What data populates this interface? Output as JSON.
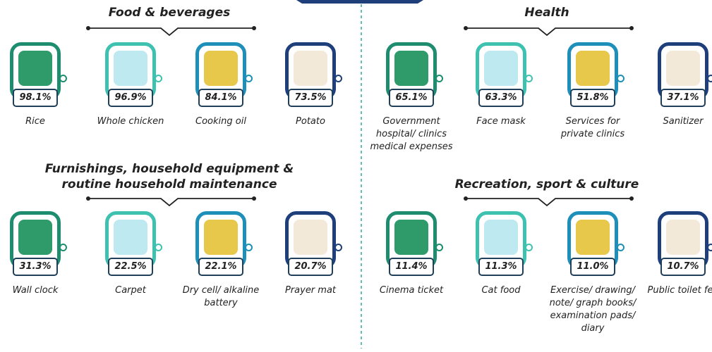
{
  "sections": [
    {
      "title": "Food & beverages",
      "items": [
        {
          "label": "Rice",
          "value": "98.1%"
        },
        {
          "label": "Whole chicken",
          "value": "96.9%"
        },
        {
          "label": "Cooking oil",
          "value": "84.1%"
        },
        {
          "label": "Potato",
          "value": "73.5%"
        }
      ]
    },
    {
      "title": "Health",
      "items": [
        {
          "label": "Government hospital/ clinics medical expenses",
          "value": "65.1%"
        },
        {
          "label": "Face mask",
          "value": "63.3%"
        },
        {
          "label": "Services for private clinics",
          "value": "51.8%"
        },
        {
          "label": "Sanitizer",
          "value": "37.1%"
        }
      ]
    },
    {
      "title": "Furnishings, household equipment & routine household maintenance",
      "items": [
        {
          "label": "Wall clock",
          "value": "31.3%"
        },
        {
          "label": "Carpet",
          "value": "22.5%"
        },
        {
          "label": "Dry cell/ alkaline battery",
          "value": "22.1%"
        },
        {
          "label": "Prayer mat",
          "value": "20.7%"
        }
      ]
    },
    {
      "title": "Recreation, sport & culture",
      "items": [
        {
          "label": "Cinema ticket",
          "value": "11.4%"
        },
        {
          "label": "Cat food",
          "value": "11.3%"
        },
        {
          "label": "Exercise/ drawing/ note/ graph books/ examination pads/ diary",
          "value": "11.0%"
        },
        {
          "label": "Public toilet fee",
          "value": "10.7%"
        }
      ]
    }
  ]
}
